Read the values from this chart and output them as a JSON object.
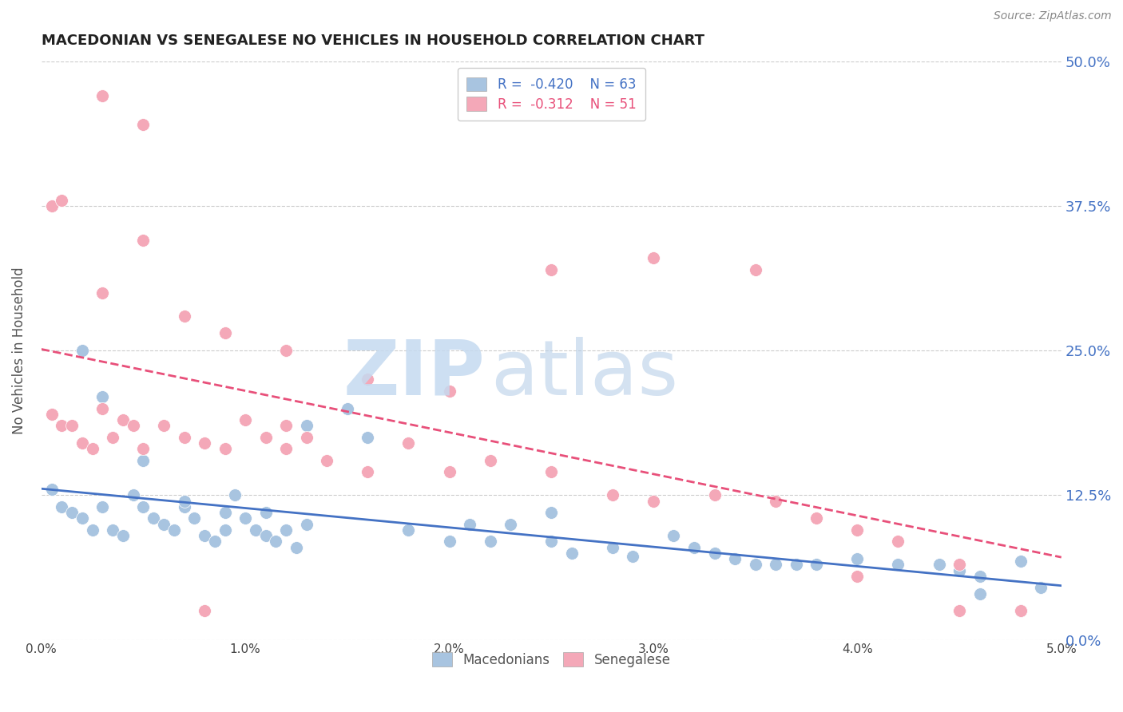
{
  "title": "MACEDONIAN VS SENEGALESE NO VEHICLES IN HOUSEHOLD CORRELATION CHART",
  "source": "Source: ZipAtlas.com",
  "ylabel": "No Vehicles in Household",
  "x_min": 0.0,
  "x_max": 0.05,
  "y_min": 0.0,
  "y_max": 0.5,
  "macedonian_color": "#a8c4e0",
  "senegalese_color": "#f4a8b8",
  "macedonian_line_color": "#4472c4",
  "senegalese_line_color": "#e8507a",
  "grid_color": "#cccccc",
  "right_tick_color": "#4472c4",
  "macedonians_x": [
    0.0005,
    0.001,
    0.0015,
    0.002,
    0.0025,
    0.003,
    0.0035,
    0.004,
    0.0045,
    0.005,
    0.0055,
    0.006,
    0.0065,
    0.007,
    0.0075,
    0.008,
    0.0085,
    0.009,
    0.0095,
    0.01,
    0.0105,
    0.011,
    0.0115,
    0.012,
    0.0125,
    0.013,
    0.015,
    0.016,
    0.018,
    0.02,
    0.021,
    0.022,
    0.023,
    0.025,
    0.026,
    0.028,
    0.029,
    0.031,
    0.032,
    0.033,
    0.034,
    0.035,
    0.036,
    0.037,
    0.038,
    0.04,
    0.042,
    0.045,
    0.046,
    0.048,
    0.002,
    0.003,
    0.005,
    0.007,
    0.009,
    0.011,
    0.013,
    0.025,
    0.035,
    0.044,
    0.046,
    0.048,
    0.049
  ],
  "macedonians_y": [
    0.13,
    0.115,
    0.11,
    0.105,
    0.095,
    0.115,
    0.095,
    0.09,
    0.125,
    0.115,
    0.105,
    0.1,
    0.095,
    0.115,
    0.105,
    0.09,
    0.085,
    0.095,
    0.125,
    0.105,
    0.095,
    0.09,
    0.085,
    0.095,
    0.08,
    0.1,
    0.2,
    0.175,
    0.095,
    0.085,
    0.1,
    0.085,
    0.1,
    0.085,
    0.075,
    0.08,
    0.072,
    0.09,
    0.08,
    0.075,
    0.07,
    0.065,
    0.065,
    0.065,
    0.065,
    0.07,
    0.065,
    0.06,
    0.055,
    0.068,
    0.25,
    0.21,
    0.155,
    0.12,
    0.11,
    0.11,
    0.185,
    0.11,
    0.065,
    0.065,
    0.04,
    0.025,
    0.045
  ],
  "senegalese_x": [
    0.0005,
    0.001,
    0.0015,
    0.002,
    0.0025,
    0.003,
    0.0035,
    0.004,
    0.0045,
    0.005,
    0.006,
    0.007,
    0.008,
    0.009,
    0.01,
    0.011,
    0.012,
    0.013,
    0.014,
    0.016,
    0.018,
    0.02,
    0.022,
    0.025,
    0.028,
    0.03,
    0.033,
    0.036,
    0.038,
    0.04,
    0.042,
    0.045,
    0.048,
    0.0005,
    0.001,
    0.003,
    0.005,
    0.007,
    0.009,
    0.012,
    0.016,
    0.02,
    0.025,
    0.03,
    0.035,
    0.04,
    0.045,
    0.003,
    0.005,
    0.008,
    0.012
  ],
  "senegalese_y": [
    0.195,
    0.185,
    0.185,
    0.17,
    0.165,
    0.2,
    0.175,
    0.19,
    0.185,
    0.165,
    0.185,
    0.175,
    0.17,
    0.165,
    0.19,
    0.175,
    0.165,
    0.175,
    0.155,
    0.145,
    0.17,
    0.145,
    0.155,
    0.145,
    0.125,
    0.12,
    0.125,
    0.12,
    0.105,
    0.095,
    0.085,
    0.065,
    0.025,
    0.375,
    0.38,
    0.3,
    0.345,
    0.28,
    0.265,
    0.25,
    0.225,
    0.215,
    0.32,
    0.33,
    0.32,
    0.055,
    0.025,
    0.47,
    0.445,
    0.025,
    0.185
  ]
}
